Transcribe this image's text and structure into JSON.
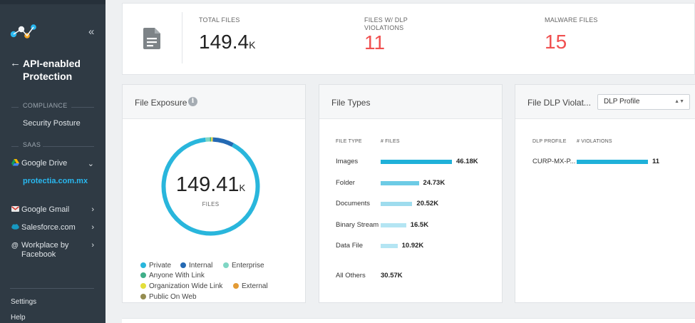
{
  "sidebar": {
    "back_title": "API-enabled Protection",
    "collapse_glyph": "«",
    "back_glyph": "←",
    "compliance_header": "COMPLIANCE",
    "security_posture": "Security Posture",
    "saas_header": "SAAS",
    "google_drive": "Google Drive",
    "active_account": "protectia.com.mx",
    "google_gmail": "Google Gmail",
    "salesforce": "Salesforce.com",
    "workplace": "Workplace by Facebook",
    "settings": "Settings",
    "help": "Help"
  },
  "summary": {
    "total_files_label": "TOTAL FILES",
    "total_files_value": "149.4",
    "total_files_unit": "K",
    "dlp_label": "FILES W/ DLP VIOLATIONS",
    "dlp_value": "11",
    "malware_label": "MALWARE FILES",
    "malware_value": "15"
  },
  "file_exposure": {
    "title": "File Exposure",
    "info_glyph": "i",
    "center_value": "149.41",
    "center_unit": "K",
    "center_label": "FILES",
    "legend": [
      {
        "label": "Private",
        "color": "#29b6dc"
      },
      {
        "label": "Internal",
        "color": "#2469b3"
      },
      {
        "label": "Enterprise",
        "color": "#7fd6c4"
      },
      {
        "label": "Anyone With Link",
        "color": "#3fae88"
      },
      {
        "label": "Organization Wide Link",
        "color": "#e3df3a"
      },
      {
        "label": "External",
        "color": "#e39b35"
      },
      {
        "label": "Public On Web",
        "color": "#948c50"
      }
    ],
    "segments_fraction": {
      "Private": 0.905,
      "Internal": 0.07,
      "Enterprise": 0.015,
      "Anyone With Link": 0.004,
      "Organization Wide Link": 0.004,
      "External": 0.001,
      "Public On Web": 0.001
    }
  },
  "file_types": {
    "title": "File Types",
    "col_type": "FILE TYPE",
    "col_files": "# FILES",
    "rows": [
      {
        "type": "Images",
        "label": "46.18K",
        "value": 46.18,
        "color": "#1fb1d9"
      },
      {
        "type": "Folder",
        "label": "24.73K",
        "value": 24.73,
        "color": "#6ccbe5"
      },
      {
        "type": "Documents",
        "label": "20.52K",
        "value": 20.52,
        "color": "#9edcee"
      },
      {
        "type": "Binary Stream",
        "label": "16.5K",
        "value": 16.5,
        "color": "#b4e5f3"
      },
      {
        "type": "Data File",
        "label": "10.92K",
        "value": 10.92,
        "color": "#b4e5f3"
      }
    ],
    "others_label": "All Others",
    "others_value": "30.57K"
  },
  "dlp_violations": {
    "title": "File DLP Violat...",
    "select_value": "DLP Profile",
    "select_caret": "▲▼",
    "col_profile": "DLP PROFILE",
    "col_violations": "# VIOLATIONS",
    "rows": [
      {
        "profile": "CURP-MX-P...",
        "value": "11",
        "color": "#1fb1d9"
      }
    ]
  },
  "colors": {
    "sidebar_bg": "#2f3a44",
    "accent": "#29b8f0",
    "alert_red": "#f05050"
  }
}
